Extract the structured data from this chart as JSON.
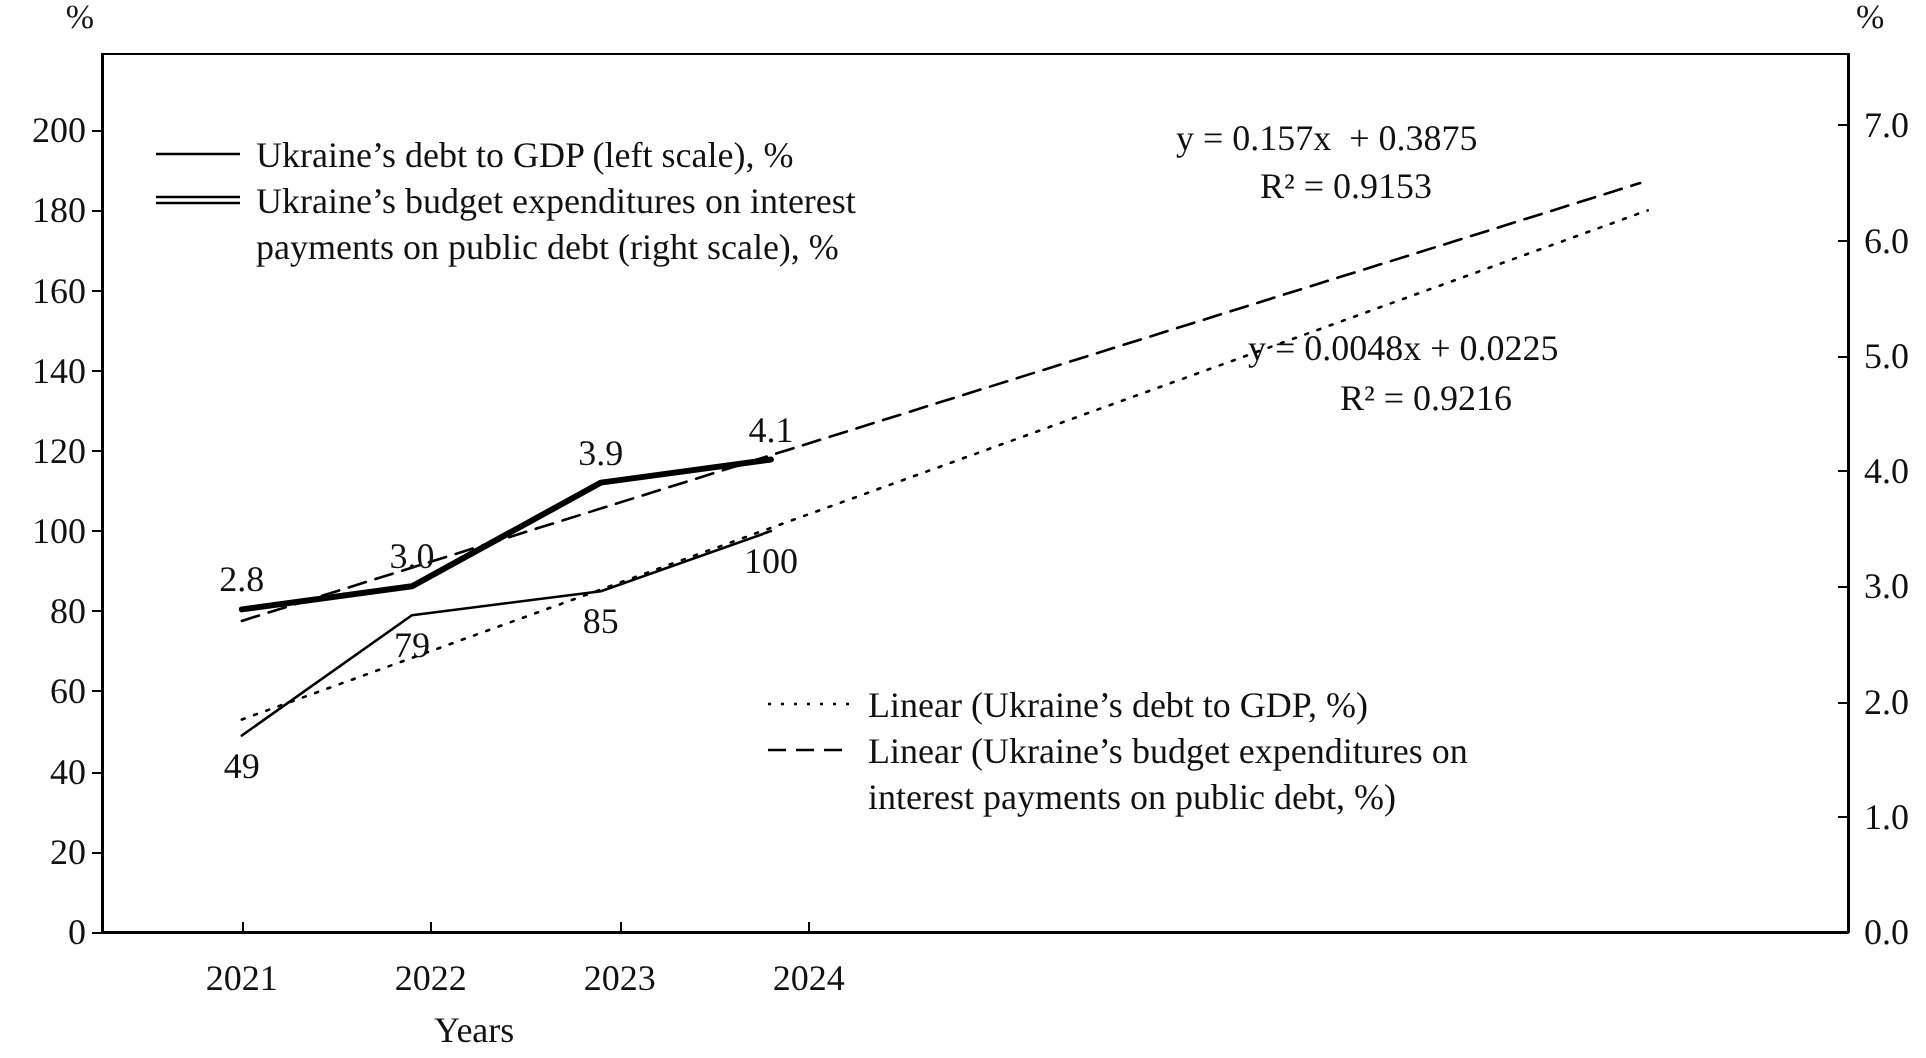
{
  "chart_data": {
    "type": "line",
    "xlabel": "Years",
    "ylabel": "%",
    "y2label": "%",
    "xlim": [
      2020.26,
      2029.5
    ],
    "xticks": [
      2021,
      2022,
      2023,
      2024
    ],
    "ylim": [
      0,
      219
    ],
    "yticks": [
      0,
      20,
      40,
      60,
      80,
      100,
      120,
      140,
      160,
      180,
      200
    ],
    "y2lim": [
      0,
      7.62
    ],
    "y2ticks": [
      {
        "value": 0,
        "label": "0.0"
      },
      {
        "value": 1,
        "label": "1.0"
      },
      {
        "value": 2,
        "label": "2.0"
      },
      {
        "value": 3,
        "label": "3.0"
      },
      {
        "value": 4,
        "label": "4.0"
      },
      {
        "value": 5,
        "label": "5.0"
      },
      {
        "value": 6,
        "label": "6.0"
      },
      {
        "value": 7,
        "label": "7.0"
      }
    ],
    "grid": false,
    "legend": "top left",
    "marker": "none",
    "series": [
      {
        "name": "Ukraine’s debt to GDP (left scale), %",
        "color": "#000000",
        "x": [
          2021,
          2021.9,
          2022.9,
          2023.8
        ],
        "values": [
          49,
          79,
          85,
          100
        ],
        "value_labels": [
          "49",
          "79",
          "85",
          "100"
        ]
      },
      {
        "name": "Ukraine’s budget expenditures on interest payments on public debt (right scale), %",
        "color": "#000000",
        "axis": "y2",
        "x": [
          2021,
          2021.9,
          2022.9,
          2023.8
        ],
        "values": [
          2.8,
          3.0,
          3.9,
          4.1
        ],
        "value_labels": [
          "2.8",
          "3.0",
          "3.9",
          "4.1"
        ]
      },
      {
        "name": "Linear (Ukraine’s debt to GDP, %)",
        "color": "#000000",
        "line_style": "dotted",
        "x": [
          2021,
          2028.44
        ],
        "values": [
          53,
          180
        ]
      },
      {
        "name": "Linear (Ukraine’s budget expenditures on interest payments on public debt, %)",
        "color": "#000000",
        "line_style": "dashed",
        "axis": "y2",
        "x": [
          2021,
          2028.4
        ],
        "values": [
          2.7,
          6.5
        ]
      }
    ],
    "annotations": [
      "y = 0.157x  + 0.3875",
      "R² = 0.9153",
      "y = 0.0048x + 0.0225",
      "R² = 0.9216"
    ]
  }
}
